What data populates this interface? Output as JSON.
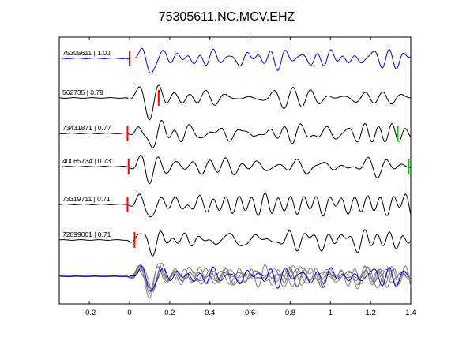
{
  "chart_data": {
    "type": "line",
    "title": "75305611.NC.MCV.EHZ",
    "xlabel": "",
    "ylabel": "",
    "xlim": [
      -0.35,
      1.4
    ],
    "xticks": [
      -0.2,
      0,
      0.2,
      0.4,
      0.6,
      0.8,
      1,
      1.2,
      1.4
    ],
    "xtick_labels": [
      "-0.2",
      "0",
      "0.2",
      "0.4",
      "0.6",
      "0.8",
      "1",
      "1.2",
      "1.4"
    ],
    "yticks": [],
    "grid": false,
    "legend": "none",
    "traces": [
      {
        "label": "75305611 | 1.00",
        "color": "#0000ff",
        "seed": 1,
        "picks": [
          {
            "t": 0.0,
            "color": "#ff0000"
          }
        ]
      },
      {
        "label": "562735 | 0.79",
        "color": "#000000",
        "seed": 2,
        "picks": [
          {
            "t": 0.145,
            "color": "#ff0000"
          }
        ]
      },
      {
        "label": "73431871 | 0.77",
        "color": "#000000",
        "seed": 3,
        "picks": [
          {
            "t": -0.01,
            "color": "#ff0000"
          },
          {
            "t": 1.335,
            "color": "#00cc00"
          }
        ]
      },
      {
        "label": "40065734 | 0.73",
        "color": "#000000",
        "seed": 4,
        "picks": [
          {
            "t": -0.005,
            "color": "#ff0000"
          },
          {
            "t": 1.39,
            "color": "#00cc00"
          }
        ]
      },
      {
        "label": "73319711 | 0.71",
        "color": "#000000",
        "seed": 5,
        "picks": [
          {
            "t": -0.01,
            "color": "#ff0000"
          }
        ]
      },
      {
        "label": "72899001 | 0.71",
        "color": "#000000",
        "seed": 6,
        "picks": [
          {
            "t": 0.025,
            "color": "#ff0000"
          }
        ]
      }
    ],
    "stack": {
      "reference_color": "#0000ff",
      "overlay_color": "#7f7f7f"
    }
  }
}
